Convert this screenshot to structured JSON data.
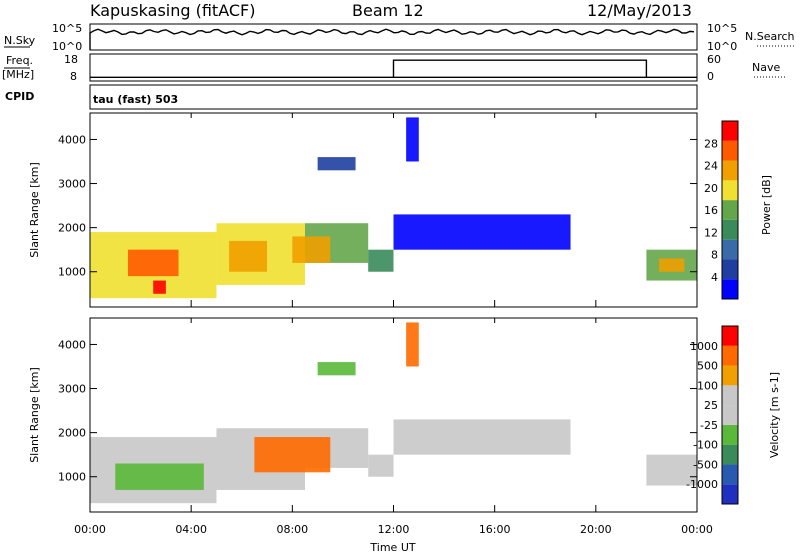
{
  "header": {
    "station": "Kapuskasing (fitACF)",
    "beam": "Beam 12",
    "date": "12/May/2013"
  },
  "noise_panel": {
    "left_label": "N.Sky",
    "left_ticks": [
      "10^5",
      "10^0"
    ],
    "right_label": "N.Search",
    "right_ticks": [
      "10^5",
      "10^0"
    ]
  },
  "freq_panel": {
    "left_label_top": "Freq.",
    "left_label_unit": "[MHz]",
    "left_ticks": [
      "18",
      "8"
    ],
    "right_label": "Nave",
    "right_ticks": [
      "60",
      "0"
    ],
    "freq_start_mhz": 9.5,
    "freq_end_mhz": 9.5,
    "nave_step": {
      "start_hour": 12.0,
      "end_hour": 22.0,
      "value": 50
    }
  },
  "cpid": {
    "label": "CPID",
    "value": "tau (fast) 503"
  },
  "colors": {
    "power_scale": [
      "#0000ff",
      "#1e3fa0",
      "#3b6aa8",
      "#3a8a5a",
      "#64a64a",
      "#f0e030",
      "#f0a000",
      "#ff5a00",
      "#ff0000"
    ],
    "velocity_scale": [
      "#1f2fbf",
      "#2a5ab0",
      "#3a8a5a",
      "#5ab83a",
      "#c8c8c8",
      "#c8c8c8",
      "#f0a000",
      "#ff6a00",
      "#ff0000"
    ]
  },
  "chart_data": [
    {
      "type": "heatmap",
      "name": "power",
      "xlabel": "",
      "ylabel": "Slant Range [km]",
      "xlim": [
        0,
        24
      ],
      "ylim": [
        200,
        4600
      ],
      "yticks": [
        "1000",
        "2000",
        "3000",
        "4000"
      ],
      "colorbar_label": "Power [dB]",
      "colorbar_ticks": [
        "28",
        "24",
        "20",
        "16",
        "12",
        "8",
        "4"
      ],
      "regions": [
        {
          "x0": 0.0,
          "x1": 5.0,
          "y0": 400,
          "y1": 1900,
          "level": 5
        },
        {
          "x0": 5.0,
          "x1": 8.5,
          "y0": 700,
          "y1": 2100,
          "level": 5
        },
        {
          "x0": 8.5,
          "x1": 11.0,
          "y0": 1200,
          "y1": 2100,
          "level": 4
        },
        {
          "x0": 11.0,
          "x1": 12.0,
          "y0": 1000,
          "y1": 1500,
          "level": 3
        },
        {
          "x0": 1.5,
          "x1": 3.5,
          "y0": 900,
          "y1": 1500,
          "level": 7
        },
        {
          "x0": 2.5,
          "x1": 3.0,
          "y0": 500,
          "y1": 800,
          "level": 8
        },
        {
          "x0": 5.5,
          "x1": 7.0,
          "y0": 1000,
          "y1": 1700,
          "level": 6
        },
        {
          "x0": 8.0,
          "x1": 9.5,
          "y0": 1200,
          "y1": 1800,
          "level": 6
        },
        {
          "x0": 9.0,
          "x1": 10.5,
          "y0": 3300,
          "y1": 3600,
          "level": 1
        },
        {
          "x0": 12.0,
          "x1": 19.0,
          "y0": 1500,
          "y1": 2300,
          "level": 0
        },
        {
          "x0": 22.0,
          "x1": 24.0,
          "y0": 800,
          "y1": 1500,
          "level": 4
        },
        {
          "x0": 22.5,
          "x1": 23.5,
          "y0": 1000,
          "y1": 1300,
          "level": 6
        },
        {
          "x0": 12.5,
          "x1": 13.0,
          "y0": 3500,
          "y1": 4500,
          "level": 0
        }
      ]
    },
    {
      "type": "heatmap",
      "name": "velocity",
      "xlabel": "Time UT",
      "ylabel": "Slant Range [km]",
      "xlim": [
        0,
        24
      ],
      "ylim": [
        200,
        4600
      ],
      "xticks": [
        "00:00",
        "04:00",
        "08:00",
        "12:00",
        "16:00",
        "20:00",
        "00:00"
      ],
      "yticks": [
        "1000",
        "2000",
        "3000",
        "4000"
      ],
      "colorbar_label": "Velocity [m s-1]",
      "colorbar_ticks": [
        "1000",
        "500",
        "100",
        "25",
        "-25",
        "-100",
        "-500",
        "-1000"
      ],
      "regions": [
        {
          "x0": 0.0,
          "x1": 5.0,
          "y0": 400,
          "y1": 1900,
          "level": 4
        },
        {
          "x0": 5.0,
          "x1": 8.5,
          "y0": 700,
          "y1": 2100,
          "level": 4
        },
        {
          "x0": 8.5,
          "x1": 11.0,
          "y0": 1200,
          "y1": 2100,
          "level": 4
        },
        {
          "x0": 11.0,
          "x1": 12.0,
          "y0": 1000,
          "y1": 1500,
          "level": 4
        },
        {
          "x0": 1.0,
          "x1": 4.5,
          "y0": 700,
          "y1": 1300,
          "level": 3
        },
        {
          "x0": 6.5,
          "x1": 9.5,
          "y0": 1100,
          "y1": 1900,
          "level": 7
        },
        {
          "x0": 9.0,
          "x1": 10.5,
          "y0": 3300,
          "y1": 3600,
          "level": 3
        },
        {
          "x0": 12.0,
          "x1": 19.0,
          "y0": 1500,
          "y1": 2300,
          "level": 4
        },
        {
          "x0": 22.0,
          "x1": 24.0,
          "y0": 800,
          "y1": 1500,
          "level": 4
        },
        {
          "x0": 12.5,
          "x1": 13.0,
          "y0": 3500,
          "y1": 4500,
          "level": 7
        }
      ]
    }
  ]
}
